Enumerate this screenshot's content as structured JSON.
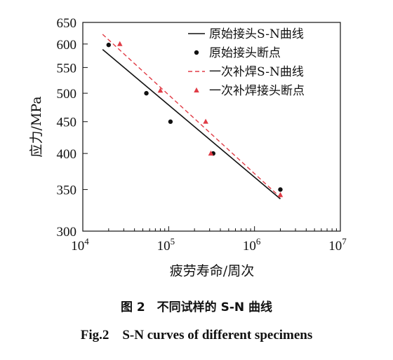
{
  "chart_data": {
    "type": "line",
    "title": "",
    "xlabel": "疲劳寿命/周次",
    "ylabel": "应力/MPa",
    "x_scale": "log",
    "y_scale": "log",
    "xlim": [
      10000,
      10000000
    ],
    "ylim": [
      300,
      650
    ],
    "x_ticks": [
      {
        "value": 10000,
        "base": "10",
        "exp": "4"
      },
      {
        "value": 100000,
        "base": "10",
        "exp": "5"
      },
      {
        "value": 1000000,
        "base": "10",
        "exp": "6"
      },
      {
        "value": 10000000,
        "base": "10",
        "exp": "7"
      }
    ],
    "y_ticks": [
      300,
      350,
      400,
      450,
      500,
      550,
      600,
      650
    ],
    "grid": false,
    "legend_position": "top-right",
    "series": [
      {
        "name": "原始接头S-N曲线",
        "kind": "line",
        "style": "solid",
        "color": "#111111",
        "x": [
          17000,
          2000000
        ],
        "y": [
          588,
          338
        ]
      },
      {
        "name": "原始接头断点",
        "kind": "scatter",
        "marker": "circle",
        "color": "#111111",
        "x": [
          20000,
          55000,
          105000,
          330000,
          2000000
        ],
        "y": [
          598,
          500,
          450,
          400,
          350
        ]
      },
      {
        "name": "一次补焊S-N曲线",
        "kind": "line",
        "style": "dashed",
        "color": "#e03c46",
        "x": [
          17000,
          2000000
        ],
        "y": [
          622,
          340
        ]
      },
      {
        "name": "一次补焊接头断点",
        "kind": "scatter",
        "marker": "triangle",
        "color": "#e03c46",
        "x": [
          27000,
          80000,
          270000,
          310000,
          2000000
        ],
        "y": [
          600,
          505,
          450,
          400,
          343
        ]
      }
    ]
  },
  "caption": {
    "cn": "图 2　不同试样的 S-N 曲线",
    "en": "Fig.2　S-N curves of different specimens"
  }
}
